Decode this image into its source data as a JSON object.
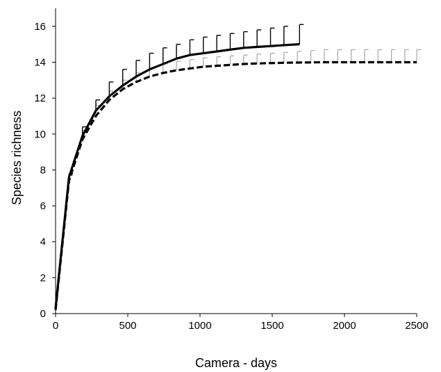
{
  "chart_data": {
    "type": "line",
    "xlabel": "Camera - days",
    "ylabel": "Species richness",
    "xlim": [
      0,
      2500
    ],
    "ylim": [
      0,
      17
    ],
    "x_ticks": [
      0,
      500,
      1000,
      1500,
      2000,
      2500
    ],
    "y_ticks": [
      0,
      2,
      4,
      6,
      8,
      10,
      12,
      14,
      16
    ],
    "x_tick_labels": [
      "0",
      "500",
      "1000",
      "1500",
      "2000",
      "2500"
    ],
    "y_tick_labels": [
      "0",
      "2",
      "4",
      "6",
      "8",
      "10",
      "12",
      "14",
      "16"
    ],
    "grid": false,
    "legend": false,
    "series": [
      {
        "style": "solid",
        "color": "#000000",
        "error_color": "#000000",
        "x": [
          0,
          93,
          186,
          279,
          372,
          465,
          558,
          651,
          744,
          837,
          930,
          1023,
          1116,
          1209,
          1302,
          1395,
          1488,
          1581,
          1689
        ],
        "y": [
          0.3,
          7.6,
          9.9,
          11.3,
          12.1,
          12.7,
          13.2,
          13.6,
          13.9,
          14.2,
          14.4,
          14.5,
          14.6,
          14.7,
          14.8,
          14.85,
          14.9,
          14.95,
          15.0
        ],
        "error_upper": [
          0.3,
          7.8,
          10.4,
          11.9,
          12.9,
          13.6,
          14.1,
          14.5,
          14.8,
          15.0,
          15.25,
          15.4,
          15.5,
          15.6,
          15.7,
          15.8,
          15.9,
          16.0,
          16.1
        ]
      },
      {
        "style": "dashed",
        "color": "#000000",
        "error_color": "#a6a6a6",
        "x": [
          0,
          93,
          186,
          279,
          372,
          465,
          558,
          651,
          744,
          837,
          930,
          1023,
          1116,
          1209,
          1302,
          1395,
          1488,
          1581,
          1674,
          1767,
          1860,
          1953,
          2046,
          2139,
          2232,
          2325,
          2418,
          2500
        ],
        "y": [
          0.2,
          7.4,
          9.7,
          11.0,
          11.9,
          12.5,
          12.9,
          13.2,
          13.4,
          13.55,
          13.65,
          13.75,
          13.8,
          13.85,
          13.9,
          13.93,
          13.95,
          13.97,
          13.98,
          13.99,
          14.0,
          14.0,
          14.0,
          14.0,
          14.0,
          14.0,
          14.0,
          14.0
        ],
        "error_upper": [
          0.2,
          7.7,
          10.2,
          11.6,
          12.4,
          13.0,
          13.4,
          13.7,
          13.9,
          14.05,
          14.15,
          14.25,
          14.3,
          14.35,
          14.4,
          14.45,
          14.5,
          14.55,
          14.6,
          14.65,
          14.7,
          14.7,
          14.7,
          14.7,
          14.7,
          14.7,
          14.7,
          14.7
        ]
      }
    ]
  }
}
